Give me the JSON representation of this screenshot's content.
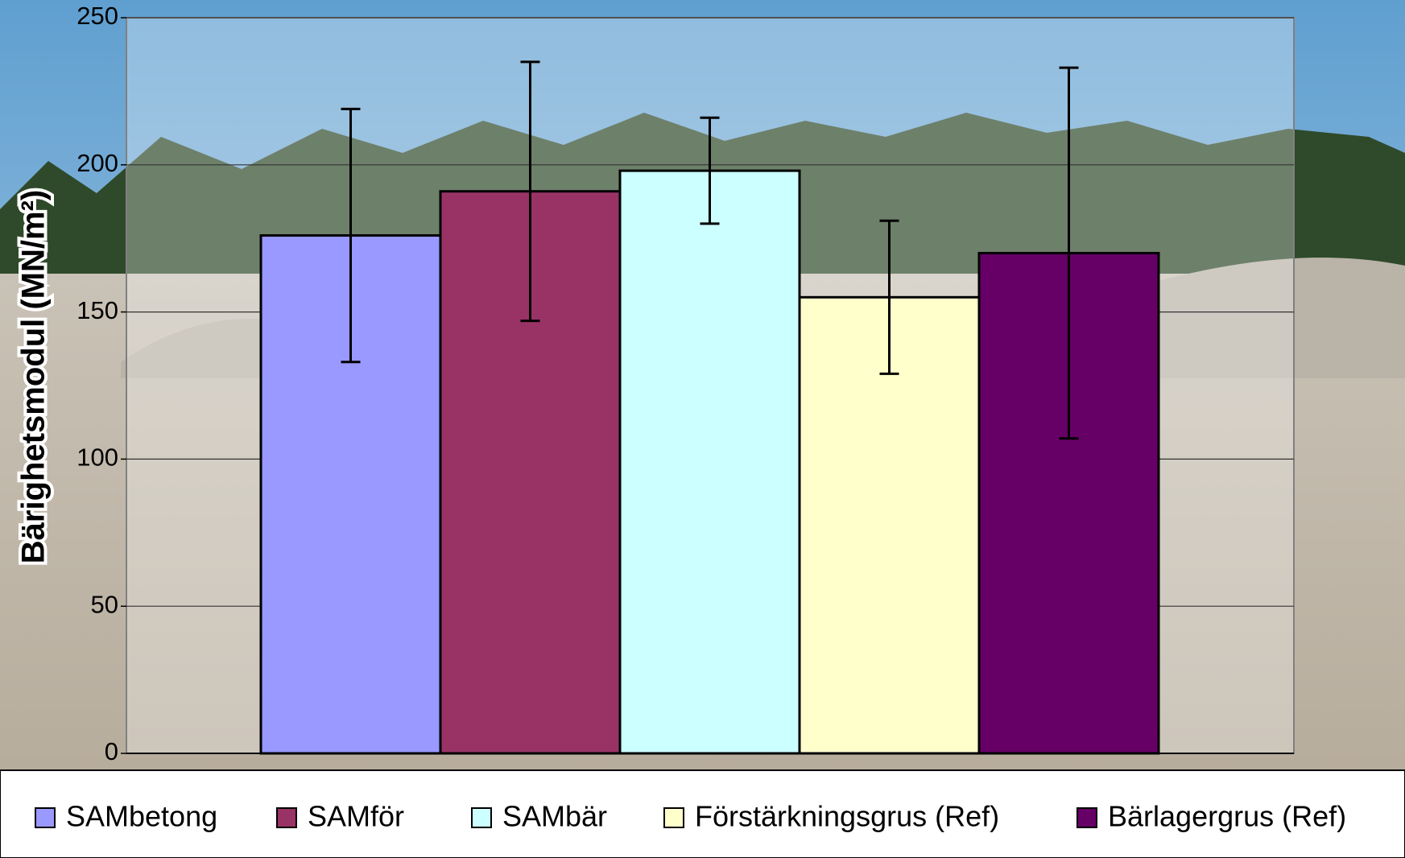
{
  "chart_data": {
    "type": "bar",
    "y_label": "Bärighetsmodul (MN/m²)",
    "ylim": [
      0,
      250
    ],
    "yticks": [
      0,
      50,
      100,
      150,
      200,
      250
    ],
    "grid": true,
    "series": [
      {
        "name": "SAMbetong",
        "color": "#9999ff",
        "values": [
          176
        ],
        "errors": [
          43
        ]
      },
      {
        "name": "SAMför",
        "color": "#993366",
        "values": [
          191
        ],
        "errors": [
          44
        ]
      },
      {
        "name": "SAMbär",
        "color": "#ccffff",
        "values": [
          198
        ],
        "errors": [
          18
        ]
      },
      {
        "name": "Förstärkningsgrus (Ref)",
        "color": "#ffffcc",
        "values": [
          155
        ],
        "errors": [
          26
        ]
      },
      {
        "name": "Bärlagergrus (Ref)",
        "color": "#660066",
        "values": [
          170
        ],
        "errors": [
          63
        ]
      }
    ]
  }
}
